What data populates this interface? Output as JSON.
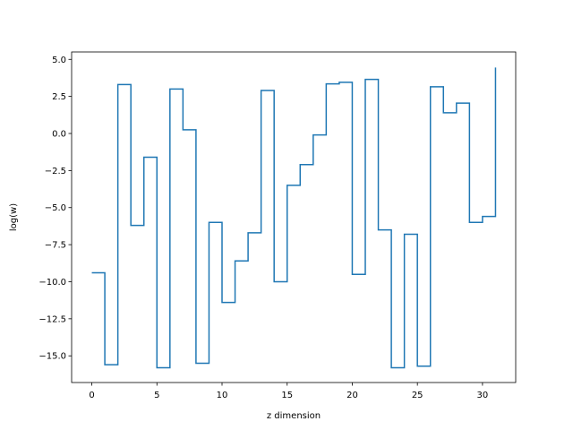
{
  "chart_data": {
    "type": "line",
    "step": "post",
    "title": "",
    "xlabel": "z dimension",
    "ylabel": "log(w)",
    "xlim": [
      -1.55,
      32.55
    ],
    "ylim": [
      -16.8,
      5.5
    ],
    "xticks": [
      0,
      5,
      10,
      15,
      20,
      25,
      30
    ],
    "yticks": [
      5.0,
      2.5,
      0.0,
      -2.5,
      -5.0,
      -7.5,
      -10.0,
      -12.5,
      -15.0
    ],
    "ytick_labels": [
      "5.0",
      "2.5",
      "0.0",
      "−2.5",
      "−5.0",
      "−7.5",
      "−10.0",
      "−12.5",
      "−15.0"
    ],
    "grid": false,
    "line_color": "#1f77b4",
    "series": [
      {
        "x": [
          0,
          1,
          2,
          3,
          4,
          5,
          6,
          7,
          8,
          9,
          10,
          11,
          12,
          13,
          14,
          15,
          16,
          17,
          18,
          19,
          20,
          21,
          22,
          23,
          24,
          25,
          26,
          27,
          28,
          29,
          30,
          31
        ],
        "values": [
          -9.4,
          -15.6,
          3.3,
          -6.2,
          -1.6,
          -15.8,
          3.0,
          0.25,
          -15.5,
          -6.0,
          -11.4,
          -8.6,
          -6.7,
          2.9,
          -10.0,
          -3.5,
          -2.1,
          -0.1,
          3.35,
          3.45,
          -9.5,
          3.65,
          -6.5,
          -15.8,
          -6.8,
          -15.7,
          3.15,
          1.4,
          2.05,
          -6.0,
          -5.6,
          4.45
        ]
      }
    ]
  }
}
